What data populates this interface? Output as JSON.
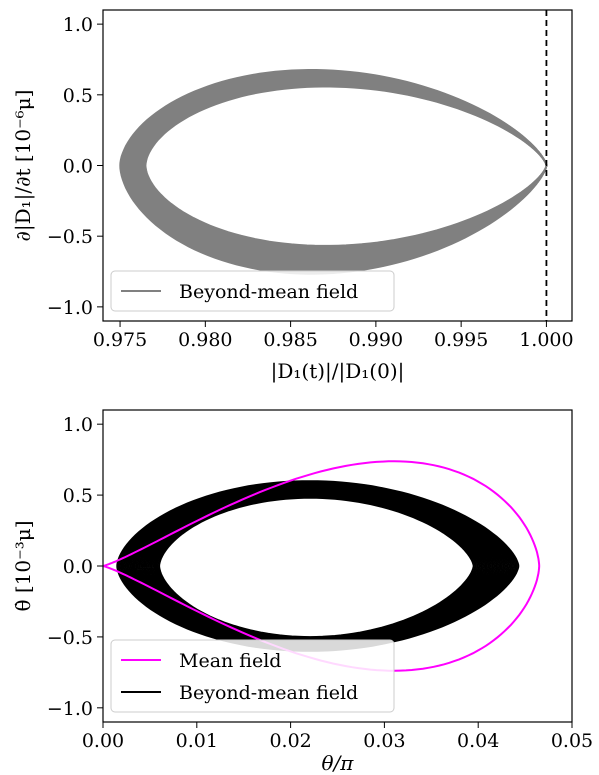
{
  "chart_data": [
    {
      "type": "line",
      "xlabel": "|D₁(t)|/|D₁(0)|",
      "ylabel": "∂|D₁|/∂t [10⁻⁶μ]",
      "xlim": [
        0.974,
        1.0015
      ],
      "ylim": [
        -1.1,
        1.1
      ],
      "xticks": [
        "0.975",
        "0.980",
        "0.985",
        "0.990",
        "0.995",
        "1.000"
      ],
      "xtick_values": [
        0.975,
        0.98,
        0.985,
        0.99,
        0.995,
        1.0
      ],
      "yticks": [
        "−1.0",
        "−0.5",
        "0.0",
        "0.5",
        "1.0"
      ],
      "ytick_values": [
        -1.0,
        -0.5,
        0.0,
        0.5,
        1.0
      ],
      "vline": {
        "x": 1.0,
        "style": "dashed",
        "color": "#000000"
      },
      "legend_position": "lower-left",
      "series": [
        {
          "name": "Beyond-mean field",
          "color": "#808080",
          "band": {
            "x_min_outer": 0.975,
            "x_min_inner": 0.9765,
            "y_max_outer": 0.68,
            "y_max_inner": 0.56,
            "y_min_outer": -0.77,
            "y_min_inner": -0.57,
            "x_tip": 1.0,
            "x_peak": 0.985
          }
        }
      ]
    },
    {
      "type": "line",
      "xlabel": "θ/π",
      "ylabel": "θ̇ [10⁻³μ]",
      "xlim": [
        0.0,
        0.05
      ],
      "ylim": [
        -1.1,
        1.1
      ],
      "xticks": [
        "0.00",
        "0.01",
        "0.02",
        "0.03",
        "0.04",
        "0.05"
      ],
      "xtick_values": [
        0.0,
        0.01,
        0.02,
        0.03,
        0.04,
        0.05
      ],
      "yticks": [
        "−1.0",
        "−0.5",
        "0.0",
        "0.5",
        "1.0"
      ],
      "ytick_values": [
        -1.0,
        -0.5,
        0.0,
        0.5,
        1.0
      ],
      "legend_position": "lower-left",
      "series": [
        {
          "name": "Mean field",
          "color": "#ff00ff",
          "orbit": {
            "x_tip": 0.0,
            "x_right": 0.0465,
            "y_max": 0.77,
            "y_min": -0.77,
            "x_peak": 0.032,
            "x_trough": 0.034
          }
        },
        {
          "name": "Beyond-mean field",
          "color": "#000000",
          "band": {
            "x_left_outer": 0.0015,
            "x_left_inner": 0.006,
            "x_right_outer": 0.0443,
            "x_right_inner": 0.0395,
            "y_max_outer": 0.6,
            "y_max_inner": 0.48,
            "y_min_outer": -0.6,
            "y_min_inner": -0.5,
            "x_peak": 0.028,
            "x_trough": 0.027
          }
        }
      ]
    }
  ]
}
